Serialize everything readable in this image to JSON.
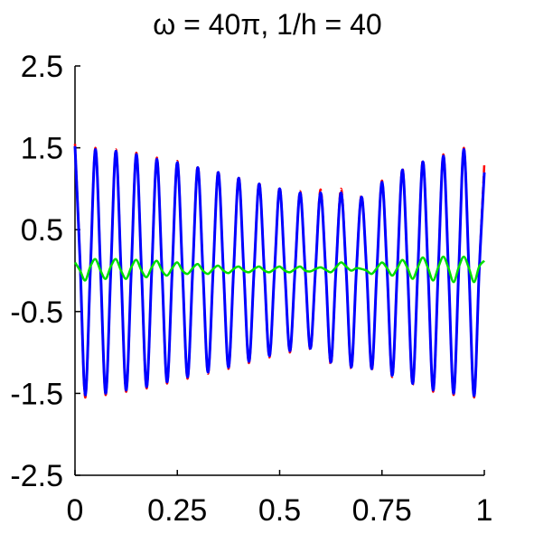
{
  "chart_data": {
    "type": "line",
    "title": "ω = 40π, 1/h = 40",
    "xlabel": "",
    "ylabel": "",
    "xlim": [
      0,
      1
    ],
    "ylim": [
      -2.5,
      2.5
    ],
    "xticks": [
      0,
      0.25,
      0.5,
      0.75,
      1
    ],
    "xtick_labels": [
      "0",
      "0.25",
      "0.5",
      "0.75",
      "1"
    ],
    "yticks": [
      -2.5,
      -1.5,
      -0.5,
      0.5,
      1.5,
      2.5
    ],
    "ytick_labels": [
      "-2.5",
      "-1.5",
      "-0.5",
      "0.5",
      "1.5",
      "2.5"
    ],
    "grid": false,
    "legend": "none",
    "series": [
      {
        "color": "#ff0000",
        "style": "dashed",
        "x": [
          0.0,
          0.0125,
          0.025,
          0.0375,
          0.05,
          0.0625,
          0.075,
          0.0875,
          0.1,
          0.1125,
          0.125,
          0.1375,
          0.15,
          0.1625,
          0.175,
          0.1875,
          0.2,
          0.2125,
          0.225,
          0.2375,
          0.25,
          0.2625,
          0.275,
          0.2875,
          0.3,
          0.3125,
          0.325,
          0.3375,
          0.35,
          0.3625,
          0.375,
          0.3875,
          0.4,
          0.4125,
          0.425,
          0.4375,
          0.45,
          0.4625,
          0.475,
          0.4875,
          0.5,
          0.5125,
          0.525,
          0.5375,
          0.55,
          0.5625,
          0.575,
          0.5875,
          0.6,
          0.6125,
          0.625,
          0.6375,
          0.65,
          0.6625,
          0.675,
          0.6875,
          0.7,
          0.7125,
          0.725,
          0.7375,
          0.75,
          0.7625,
          0.775,
          0.7875,
          0.8,
          0.8125,
          0.825,
          0.8375,
          0.85,
          0.8625,
          0.875,
          0.8875,
          0.9,
          0.9125,
          0.925,
          0.9375,
          0.95,
          0.9625,
          0.975,
          0.9875,
          1.0
        ],
        "y": [
          1.55,
          0.1,
          -1.55,
          0.0,
          1.5,
          0.0,
          -1.52,
          0.0,
          1.48,
          0.0,
          -1.48,
          0.0,
          1.44,
          0.0,
          -1.44,
          0.0,
          1.38,
          0.0,
          -1.38,
          0.0,
          1.34,
          0.0,
          -1.32,
          0.0,
          1.28,
          0.0,
          -1.26,
          0.0,
          1.22,
          0.0,
          -1.2,
          0.0,
          1.15,
          0.0,
          -1.13,
          0.0,
          1.08,
          0.0,
          -1.06,
          0.0,
          1.02,
          0.0,
          -1.0,
          0.0,
          0.97,
          0.0,
          -0.97,
          0.0,
          0.99,
          0.0,
          -1.15,
          0.0,
          1.0,
          0.0,
          -1.2,
          0.0,
          0.92,
          0.0,
          -1.22,
          0.0,
          1.1,
          0.0,
          -1.3,
          0.0,
          1.25,
          0.0,
          -1.4,
          0.0,
          1.35,
          0.0,
          -1.48,
          0.0,
          1.42,
          0.0,
          -1.52,
          0.0,
          1.5,
          0.0,
          -1.55,
          0.0,
          1.3
        ]
      },
      {
        "color": "#0000ff",
        "style": "solid",
        "x": [
          0.0,
          0.0125,
          0.025,
          0.0375,
          0.05,
          0.0625,
          0.075,
          0.0875,
          0.1,
          0.1125,
          0.125,
          0.1375,
          0.15,
          0.1625,
          0.175,
          0.1875,
          0.2,
          0.2125,
          0.225,
          0.2375,
          0.25,
          0.2625,
          0.275,
          0.2875,
          0.3,
          0.3125,
          0.325,
          0.3375,
          0.35,
          0.3625,
          0.375,
          0.3875,
          0.4,
          0.4125,
          0.425,
          0.4375,
          0.45,
          0.4625,
          0.475,
          0.4875,
          0.5,
          0.5125,
          0.525,
          0.5375,
          0.55,
          0.5625,
          0.575,
          0.5875,
          0.6,
          0.6125,
          0.625,
          0.6375,
          0.65,
          0.6625,
          0.675,
          0.6875,
          0.7,
          0.7125,
          0.725,
          0.7375,
          0.75,
          0.7625,
          0.775,
          0.7875,
          0.8,
          0.8125,
          0.825,
          0.8375,
          0.85,
          0.8625,
          0.875,
          0.8875,
          0.9,
          0.9125,
          0.925,
          0.9375,
          0.95,
          0.9625,
          0.975,
          0.9875,
          1.0
        ],
        "y": [
          1.52,
          0.1,
          -1.52,
          0.0,
          1.48,
          0.0,
          -1.5,
          0.0,
          1.46,
          0.0,
          -1.46,
          0.0,
          1.42,
          0.0,
          -1.42,
          0.0,
          1.36,
          0.0,
          -1.36,
          0.0,
          1.32,
          0.0,
          -1.3,
          0.0,
          1.26,
          0.0,
          -1.24,
          0.0,
          1.2,
          0.0,
          -1.18,
          0.0,
          1.13,
          0.0,
          -1.11,
          0.0,
          1.06,
          0.0,
          -1.04,
          0.0,
          1.0,
          0.0,
          -0.98,
          0.0,
          0.95,
          0.0,
          -0.95,
          0.0,
          0.95,
          0.0,
          -1.12,
          0.0,
          0.95,
          0.0,
          -1.18,
          0.0,
          0.9,
          0.0,
          -1.2,
          0.0,
          1.08,
          0.0,
          -1.28,
          0.0,
          1.23,
          0.0,
          -1.38,
          0.0,
          1.33,
          0.0,
          -1.46,
          0.0,
          1.4,
          0.0,
          -1.5,
          0.0,
          1.48,
          0.0,
          -1.53,
          0.0,
          1.2
        ]
      },
      {
        "color": "#00dd00",
        "style": "solid",
        "x": [
          0.0,
          0.0125,
          0.025,
          0.0375,
          0.05,
          0.0625,
          0.075,
          0.0875,
          0.1,
          0.1125,
          0.125,
          0.1375,
          0.15,
          0.1625,
          0.175,
          0.1875,
          0.2,
          0.2125,
          0.225,
          0.2375,
          0.25,
          0.2625,
          0.275,
          0.2875,
          0.3,
          0.3125,
          0.325,
          0.3375,
          0.35,
          0.3625,
          0.375,
          0.3875,
          0.4,
          0.4125,
          0.425,
          0.4375,
          0.45,
          0.4625,
          0.475,
          0.4875,
          0.5,
          0.5125,
          0.525,
          0.5375,
          0.55,
          0.5625,
          0.575,
          0.5875,
          0.6,
          0.6125,
          0.625,
          0.6375,
          0.65,
          0.6625,
          0.675,
          0.6875,
          0.7,
          0.7125,
          0.725,
          0.7375,
          0.75,
          0.7625,
          0.775,
          0.7875,
          0.8,
          0.8125,
          0.825,
          0.8375,
          0.85,
          0.8625,
          0.875,
          0.8875,
          0.9,
          0.9125,
          0.925,
          0.9375,
          0.95,
          0.9625,
          0.975,
          0.9875,
          1.0
        ],
        "y": [
          0.1,
          0.0,
          -0.12,
          0.05,
          0.14,
          0.0,
          -0.1,
          0.05,
          0.14,
          0.0,
          -0.1,
          0.04,
          0.13,
          0.0,
          -0.08,
          0.04,
          0.12,
          0.0,
          -0.06,
          0.03,
          0.1,
          0.0,
          -0.04,
          0.03,
          0.08,
          0.0,
          -0.04,
          0.02,
          0.06,
          0.0,
          -0.03,
          0.02,
          0.05,
          0.0,
          -0.02,
          0.02,
          0.05,
          0.0,
          -0.02,
          0.02,
          0.05,
          0.0,
          -0.02,
          0.02,
          0.05,
          0.0,
          -0.01,
          0.02,
          0.04,
          0.01,
          -0.02,
          0.04,
          0.1,
          0.05,
          0.0,
          0.03,
          0.02,
          0.0,
          -0.04,
          0.03,
          0.1,
          0.03,
          -0.06,
          0.03,
          0.13,
          0.03,
          -0.1,
          0.04,
          0.16,
          0.03,
          -0.12,
          0.04,
          0.17,
          0.03,
          -0.14,
          0.04,
          0.17,
          0.03,
          -0.14,
          0.05,
          0.12
        ]
      }
    ]
  }
}
